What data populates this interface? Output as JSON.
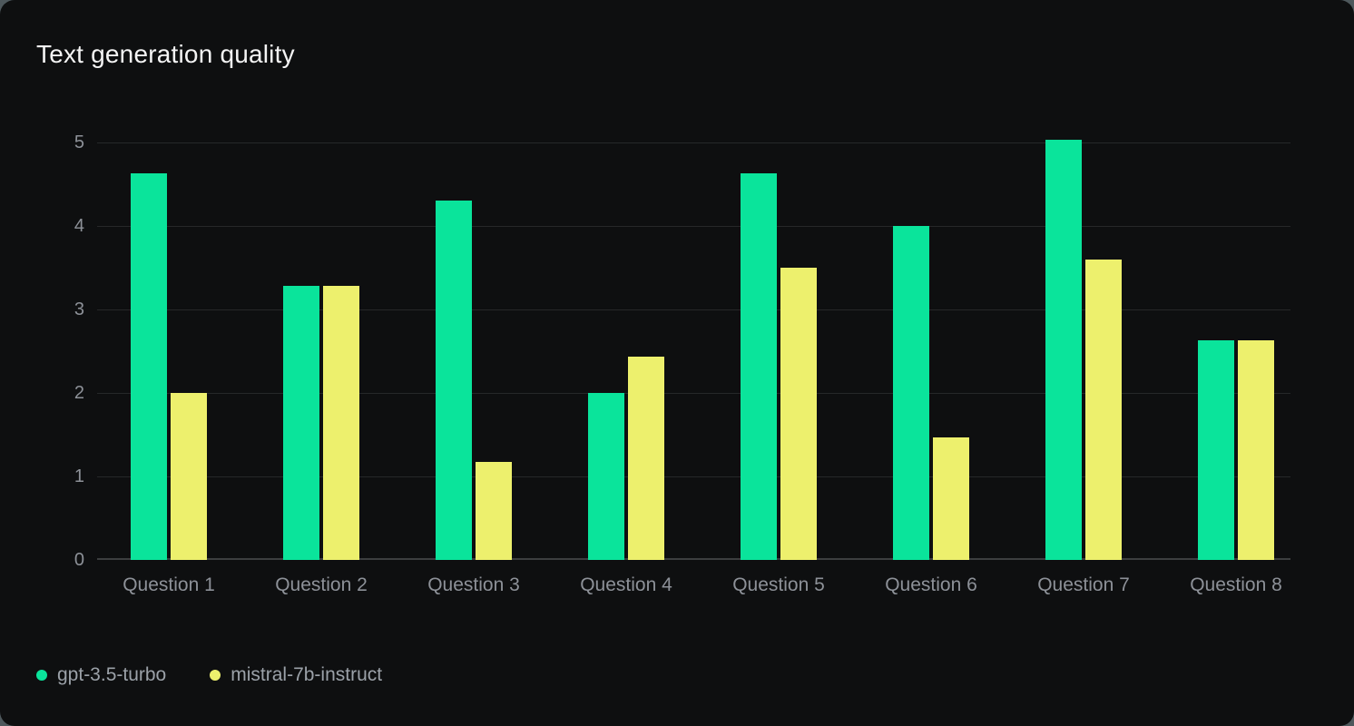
{
  "chart_data": {
    "type": "bar",
    "title": "Text generation quality",
    "categories": [
      "Question 1",
      "Question 2",
      "Question 3",
      "Question 4",
      "Question 5",
      "Question 6",
      "Question 7",
      "Question 8"
    ],
    "series": [
      {
        "name": "gpt-3.5-turbo",
        "color": "#0ae49b",
        "values": [
          4.63,
          3.28,
          4.31,
          2.0,
          4.63,
          4.0,
          5.03,
          2.63
        ]
      },
      {
        "name": "mistral-7b-instruct",
        "color": "#edf06d",
        "values": [
          2.0,
          3.28,
          1.17,
          2.43,
          3.5,
          1.47,
          3.6,
          2.63
        ]
      }
    ],
    "xlabel": "",
    "ylabel": "",
    "ylim": [
      0,
      5
    ],
    "y_ticks": [
      "0",
      "1",
      "2",
      "3",
      "4",
      "5"
    ],
    "grid": true,
    "legend_position": "bottom-left"
  },
  "colors": {
    "card_background": "#0e0f10",
    "page_background": "#4e585c",
    "title_text": "#f4f4f4",
    "axis_text": "#8d9198",
    "legend_text": "#9ba1a8",
    "gridline": "#262829",
    "axis_line": "#3c3e3f"
  }
}
